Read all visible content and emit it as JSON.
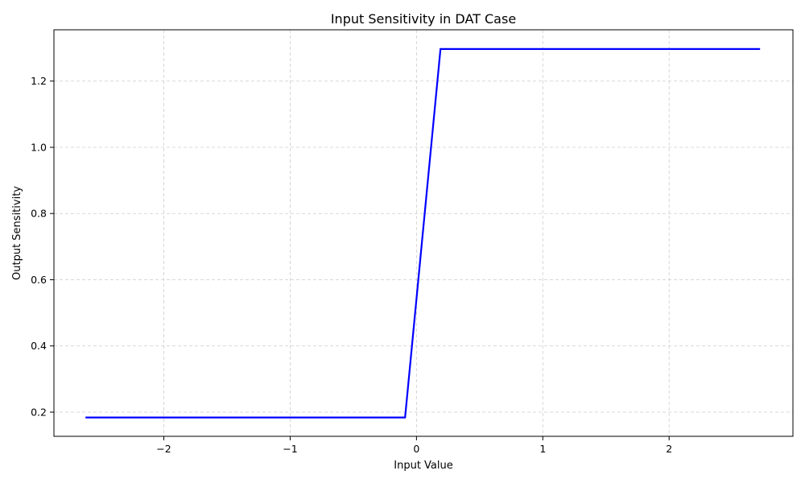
{
  "chart_data": {
    "type": "line",
    "title": "Input Sensitivity in DAT Case",
    "xlabel": "Input Value",
    "ylabel": "Output Sensitivity",
    "xlim": [
      -2.87,
      2.98
    ],
    "ylim": [
      0.127,
      1.355
    ],
    "xticks": [
      -2,
      -1,
      0,
      1,
      2
    ],
    "xtick_labels": [
      "−2",
      "−1",
      "0",
      "1",
      "2"
    ],
    "yticks": [
      0.2,
      0.4,
      0.6,
      0.8,
      1.0,
      1.2
    ],
    "ytick_labels": [
      "0.2",
      "0.4",
      "0.6",
      "0.8",
      "1.0",
      "1.2"
    ],
    "grid": true,
    "grid_style": "dashed",
    "series": [
      {
        "color": "#0000ff",
        "x": [
          -2.62,
          -0.09,
          0.19,
          2.72
        ],
        "y": [
          0.184,
          0.184,
          1.297,
          1.297
        ]
      }
    ]
  }
}
